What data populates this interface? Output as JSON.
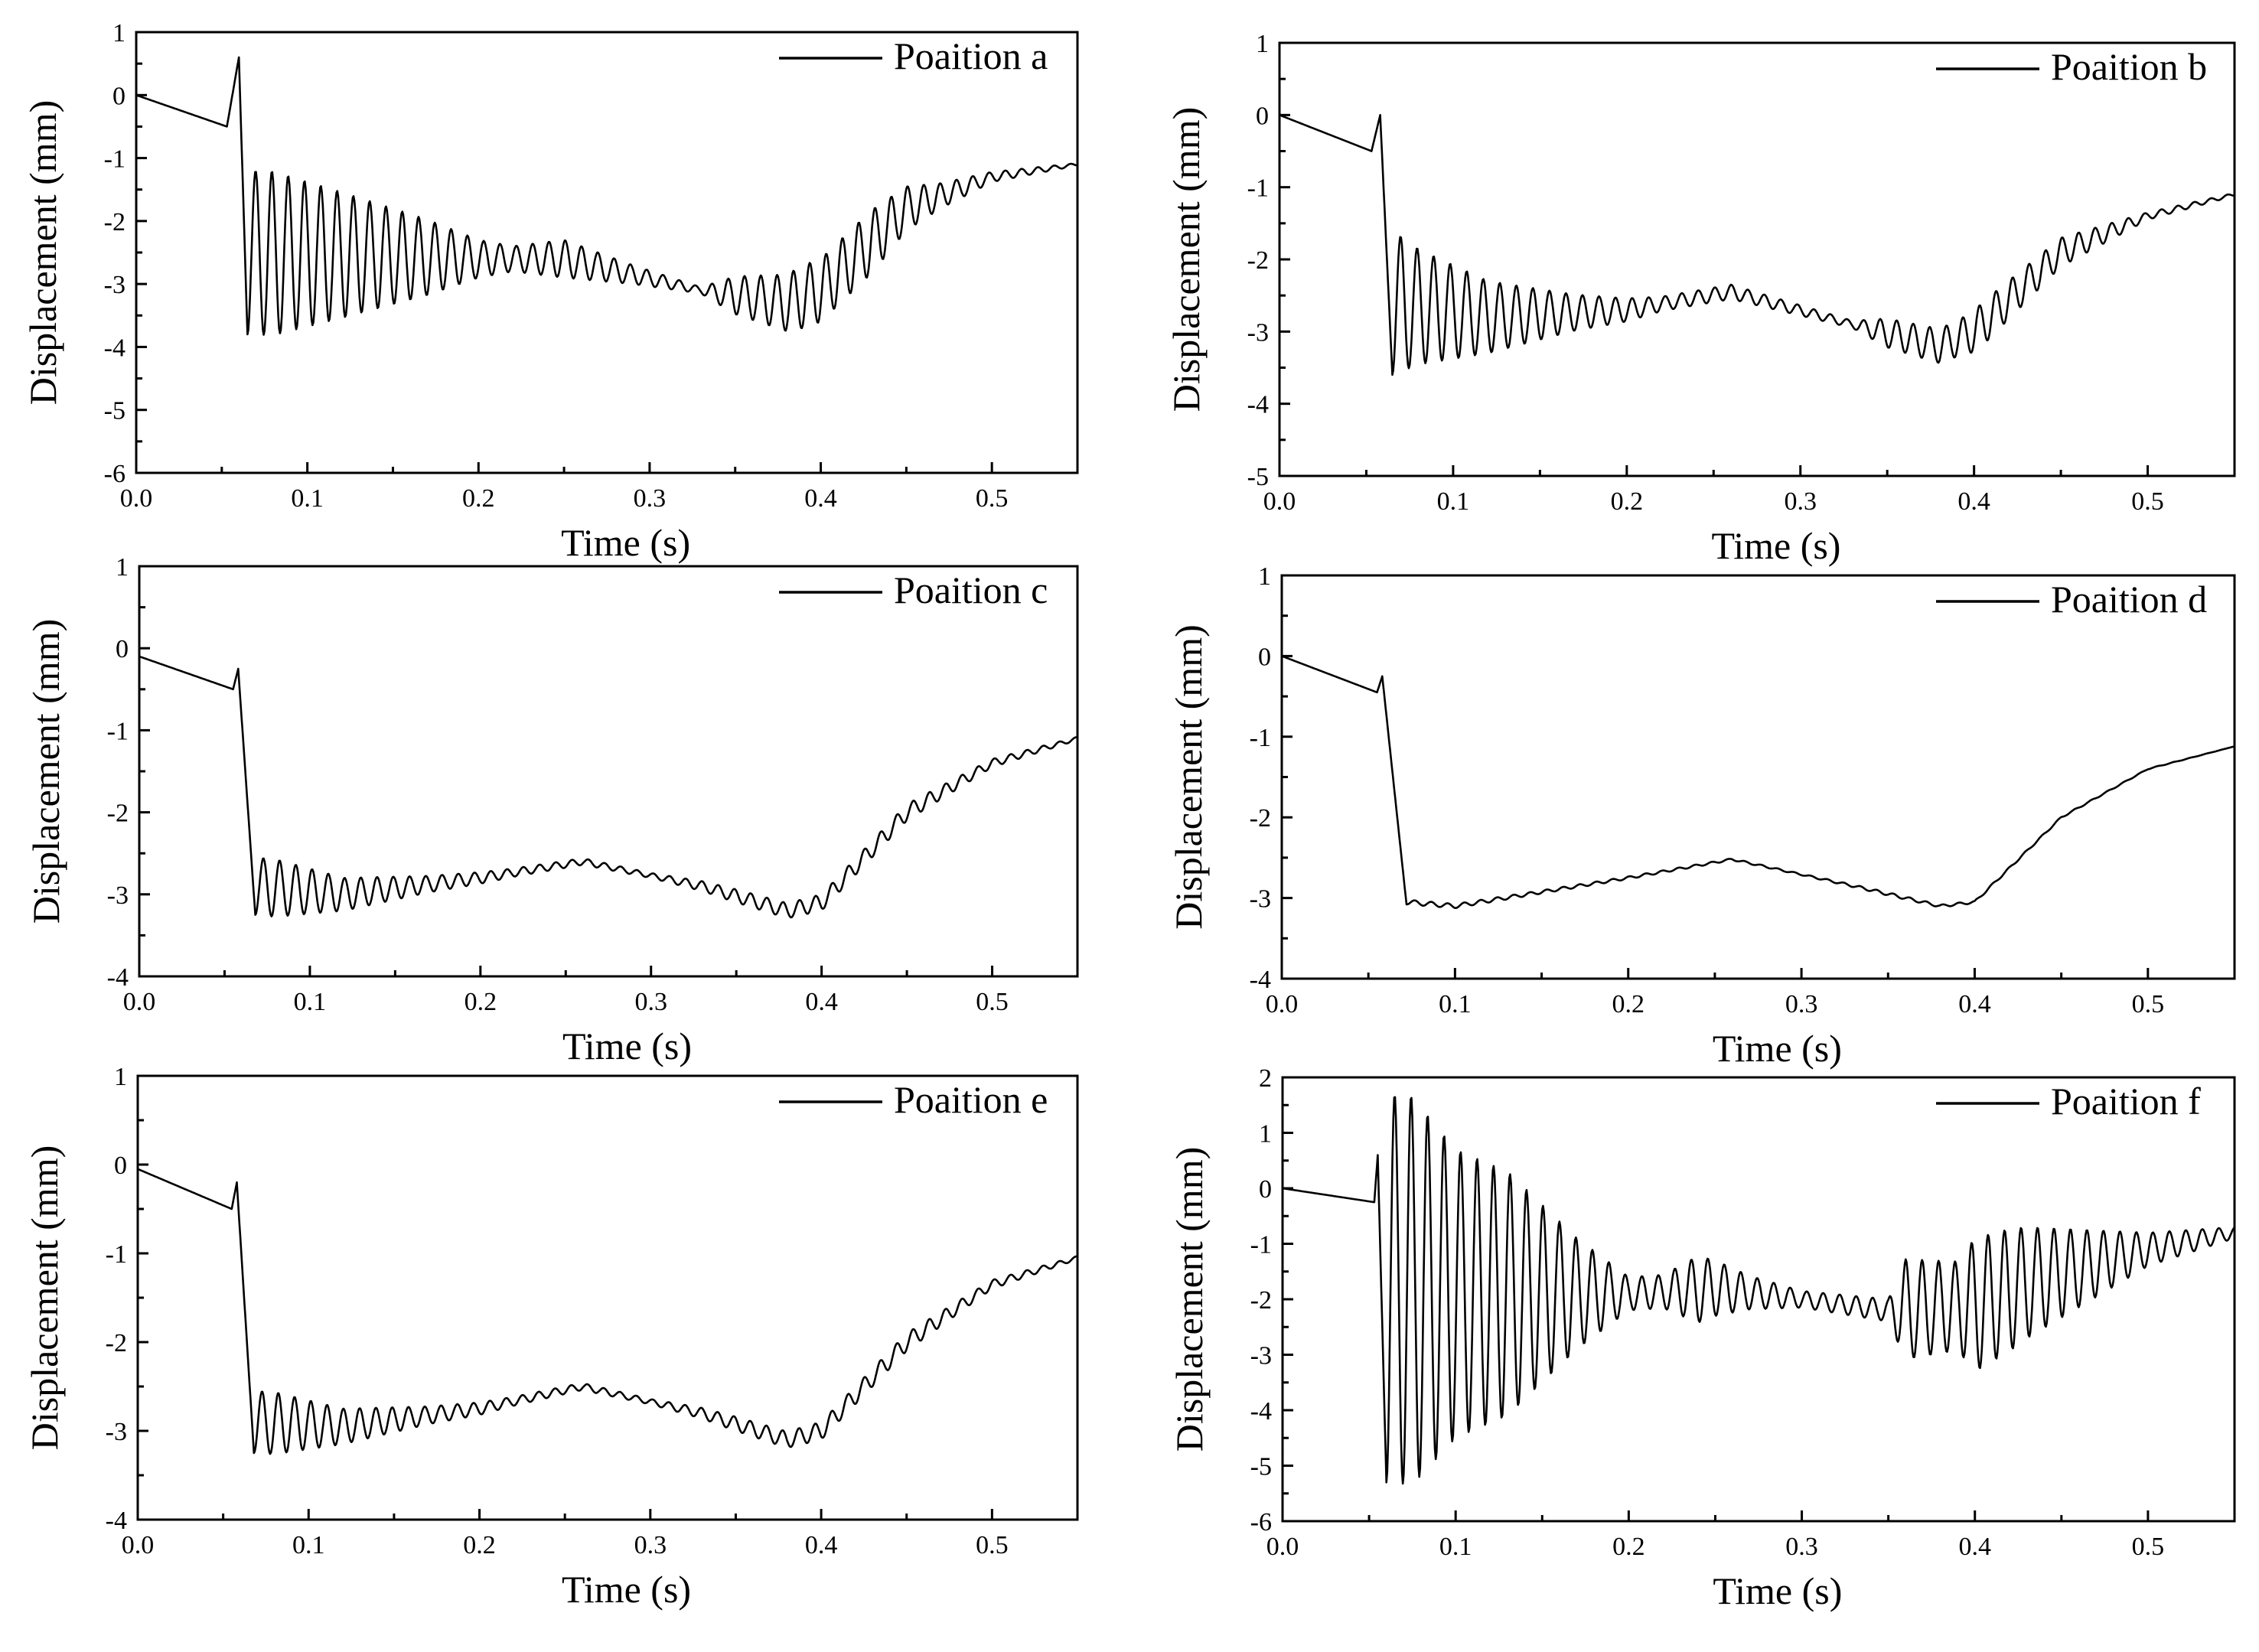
{
  "chart_data": [
    {
      "type": "line",
      "legend": "Poaition a",
      "xlabel": "Time  (s)",
      "ylabel": "Displacement  (mm)",
      "xlim": [
        0,
        0.55
      ],
      "ylim": [
        -6,
        1
      ],
      "xticks": [
        "0.0",
        "0.1",
        "0.2",
        "0.3",
        "0.4",
        "0.5"
      ],
      "yticks": [
        "1",
        "0",
        "-1",
        "-2",
        "-3",
        "-4",
        "-5",
        "-6"
      ],
      "legend_position": "top-right",
      "signal": {
        "pre": [
          [
            0,
            0
          ],
          [
            0.053,
            -0.5
          ]
        ],
        "spike": [
          0.06,
          0.6
        ],
        "baseline": [
          [
            0.065,
            -2.5
          ],
          [
            0.2,
            -2.6
          ],
          [
            0.25,
            -2.6
          ],
          [
            0.33,
            -3.1
          ],
          [
            0.38,
            -3.3
          ],
          [
            0.4,
            -3.1
          ],
          [
            0.45,
            -1.8
          ],
          [
            0.5,
            -1.3
          ],
          [
            0.55,
            -1.1
          ]
        ],
        "envelope": [
          [
            0.065,
            1.3
          ],
          [
            0.08,
            1.3
          ],
          [
            0.12,
            1.0
          ],
          [
            0.17,
            0.6
          ],
          [
            0.2,
            0.3
          ],
          [
            0.22,
            0.2
          ],
          [
            0.25,
            0.3
          ],
          [
            0.29,
            0.15
          ],
          [
            0.33,
            0.05
          ],
          [
            0.35,
            0.3
          ],
          [
            0.39,
            0.5
          ],
          [
            0.405,
            0.5
          ],
          [
            0.43,
            0.5
          ],
          [
            0.47,
            0.2
          ],
          [
            0.5,
            0.08
          ],
          [
            0.55,
            0.02
          ]
        ],
        "freq": 105
      }
    },
    {
      "type": "line",
      "legend": "Poaition b",
      "xlabel": "Time  (s)",
      "ylabel": "Displacement  (mm)",
      "xlim": [
        0,
        0.55
      ],
      "ylim": [
        -5,
        1
      ],
      "xticks": [
        "0.0",
        "0.1",
        "0.2",
        "0.3",
        "0.4",
        "0.5"
      ],
      "yticks": [
        "1",
        "0",
        "-1",
        "-2",
        "-3",
        "-4",
        "-5"
      ],
      "legend_position": "top-right",
      "signal": {
        "pre": [
          [
            0,
            0
          ],
          [
            0.053,
            -0.5
          ]
        ],
        "spike": [
          0.058,
          0.0
        ],
        "baseline": [
          [
            0.065,
            -2.6
          ],
          [
            0.12,
            -2.8
          ],
          [
            0.2,
            -2.7
          ],
          [
            0.26,
            -2.45
          ],
          [
            0.33,
            -2.9
          ],
          [
            0.38,
            -3.2
          ],
          [
            0.4,
            -3.0
          ],
          [
            0.45,
            -1.9
          ],
          [
            0.5,
            -1.4
          ],
          [
            0.55,
            -1.1
          ]
        ],
        "envelope": [
          [
            0.065,
            1.0
          ],
          [
            0.08,
            0.8
          ],
          [
            0.12,
            0.5
          ],
          [
            0.17,
            0.25
          ],
          [
            0.22,
            0.1
          ],
          [
            0.26,
            0.1
          ],
          [
            0.33,
            0.05
          ],
          [
            0.35,
            0.2
          ],
          [
            0.39,
            0.25
          ],
          [
            0.405,
            0.3
          ],
          [
            0.45,
            0.2
          ],
          [
            0.5,
            0.05
          ],
          [
            0.55,
            0.02
          ]
        ],
        "freq": 105
      }
    },
    {
      "type": "line",
      "legend": "Poaition c",
      "xlabel": "Time  (s)",
      "ylabel": "Displacement  (mm)",
      "xlim": [
        0,
        0.55
      ],
      "ylim": [
        -4,
        1
      ],
      "xticks": [
        "0.0",
        "0.1",
        "0.2",
        "0.3",
        "0.4",
        "0.5"
      ],
      "yticks": [
        "1",
        "0",
        "-1",
        "-2",
        "-3",
        "-4"
      ],
      "legend_position": "top-right",
      "signal": {
        "pre": [
          [
            0,
            -0.1
          ],
          [
            0.055,
            -0.5
          ]
        ],
        "spike": [
          0.058,
          -0.25
        ],
        "baseline": [
          [
            0.068,
            -2.9
          ],
          [
            0.12,
            -3.0
          ],
          [
            0.2,
            -2.8
          ],
          [
            0.26,
            -2.6
          ],
          [
            0.33,
            -2.9
          ],
          [
            0.38,
            -3.2
          ],
          [
            0.4,
            -3.1
          ],
          [
            0.45,
            -2.0
          ],
          [
            0.5,
            -1.4
          ],
          [
            0.55,
            -1.1
          ]
        ],
        "envelope": [
          [
            0.068,
            0.35
          ],
          [
            0.08,
            0.35
          ],
          [
            0.12,
            0.2
          ],
          [
            0.17,
            0.1
          ],
          [
            0.22,
            0.05
          ],
          [
            0.3,
            0.03
          ],
          [
            0.35,
            0.08
          ],
          [
            0.4,
            0.1
          ],
          [
            0.45,
            0.1
          ],
          [
            0.5,
            0.05
          ],
          [
            0.55,
            0.02
          ]
        ],
        "freq": 105
      }
    },
    {
      "type": "line",
      "legend": "Poaition d",
      "xlabel": "Time  (s)",
      "ylabel": "Displacement  (mm)",
      "xlim": [
        0,
        0.55
      ],
      "ylim": [
        -4,
        1
      ],
      "xticks": [
        "0.0",
        "0.1",
        "0.2",
        "0.3",
        "0.4",
        "0.5"
      ],
      "yticks": [
        "1",
        "0",
        "-1",
        "-2",
        "-3",
        "-4"
      ],
      "legend_position": "top-right",
      "signal": {
        "pre": [
          [
            0,
            0
          ],
          [
            0.055,
            -0.45
          ]
        ],
        "spike": [
          0.058,
          -0.25
        ],
        "baseline": [
          [
            0.072,
            -3.05
          ],
          [
            0.1,
            -3.1
          ],
          [
            0.2,
            -2.75
          ],
          [
            0.26,
            -2.52
          ],
          [
            0.33,
            -2.85
          ],
          [
            0.38,
            -3.1
          ],
          [
            0.4,
            -3.05
          ],
          [
            0.45,
            -2.0
          ],
          [
            0.5,
            -1.4
          ],
          [
            0.55,
            -1.12
          ]
        ],
        "envelope": [
          [
            0.072,
            0.03
          ],
          [
            0.15,
            0.02
          ],
          [
            0.3,
            0.01
          ],
          [
            0.35,
            0.02
          ],
          [
            0.55,
            0.0
          ]
        ],
        "freq": 105
      }
    },
    {
      "type": "line",
      "legend": "Poaition e",
      "xlabel": "Time  (s)",
      "ylabel": "Displacement  (mm)",
      "xlim": [
        0,
        0.55
      ],
      "ylim": [
        -4,
        1
      ],
      "xticks": [
        "0.0",
        "0.1",
        "0.2",
        "0.3",
        "0.4",
        "0.5"
      ],
      "yticks": [
        "1",
        "0",
        "-1",
        "-2",
        "-3",
        "-4"
      ],
      "legend_position": "top-right",
      "signal": {
        "pre": [
          [
            0,
            -0.05
          ],
          [
            0.055,
            -0.5
          ]
        ],
        "spike": [
          0.058,
          -0.2
        ],
        "baseline": [
          [
            0.068,
            -2.9
          ],
          [
            0.12,
            -2.95
          ],
          [
            0.2,
            -2.75
          ],
          [
            0.26,
            -2.5
          ],
          [
            0.33,
            -2.8
          ],
          [
            0.38,
            -3.1
          ],
          [
            0.4,
            -3.0
          ],
          [
            0.45,
            -2.0
          ],
          [
            0.5,
            -1.35
          ],
          [
            0.55,
            -1.05
          ]
        ],
        "envelope": [
          [
            0.068,
            0.35
          ],
          [
            0.08,
            0.35
          ],
          [
            0.12,
            0.2
          ],
          [
            0.17,
            0.1
          ],
          [
            0.22,
            0.05
          ],
          [
            0.3,
            0.03
          ],
          [
            0.35,
            0.08
          ],
          [
            0.4,
            0.1
          ],
          [
            0.45,
            0.1
          ],
          [
            0.5,
            0.05
          ],
          [
            0.55,
            0.02
          ]
        ],
        "freq": 105
      }
    },
    {
      "type": "line",
      "legend": "Poaition f",
      "xlabel": "Time  (s)",
      "ylabel": "Displacement  (mm)",
      "xlim": [
        0,
        0.55
      ],
      "ylim": [
        -6,
        2
      ],
      "xticks": [
        "0.0",
        "0.1",
        "0.2",
        "0.3",
        "0.4",
        "0.5"
      ],
      "yticks": [
        "2",
        "1",
        "0",
        "-1",
        "-2",
        "-3",
        "-4",
        "-5",
        "-6"
      ],
      "legend_position": "top-right",
      "signal": {
        "pre": [
          [
            0,
            0
          ],
          [
            0.053,
            -0.25
          ]
        ],
        "spike": [
          0.055,
          0.6
        ],
        "baseline": [
          [
            0.06,
            -1.8
          ],
          [
            0.1,
            -1.9
          ],
          [
            0.15,
            -1.9
          ],
          [
            0.2,
            -1.9
          ],
          [
            0.25,
            -1.8
          ],
          [
            0.3,
            -2.0
          ],
          [
            0.35,
            -2.2
          ],
          [
            0.4,
            -2.1
          ],
          [
            0.43,
            -1.7
          ],
          [
            0.5,
            -1.1
          ],
          [
            0.55,
            -0.8
          ]
        ],
        "envelope": [
          [
            0.06,
            3.5
          ],
          [
            0.075,
            3.5
          ],
          [
            0.1,
            2.6
          ],
          [
            0.13,
            2.2
          ],
          [
            0.17,
            1.0
          ],
          [
            0.2,
            0.3
          ],
          [
            0.22,
            0.3
          ],
          [
            0.24,
            0.6
          ],
          [
            0.27,
            0.3
          ],
          [
            0.3,
            0.15
          ],
          [
            0.35,
            0.2
          ],
          [
            0.36,
            0.9
          ],
          [
            0.39,
            0.8
          ],
          [
            0.4,
            1.2
          ],
          [
            0.42,
            1.1
          ],
          [
            0.46,
            0.7
          ],
          [
            0.5,
            0.3
          ],
          [
            0.55,
            0.1
          ]
        ],
        "freq": 105
      }
    }
  ]
}
